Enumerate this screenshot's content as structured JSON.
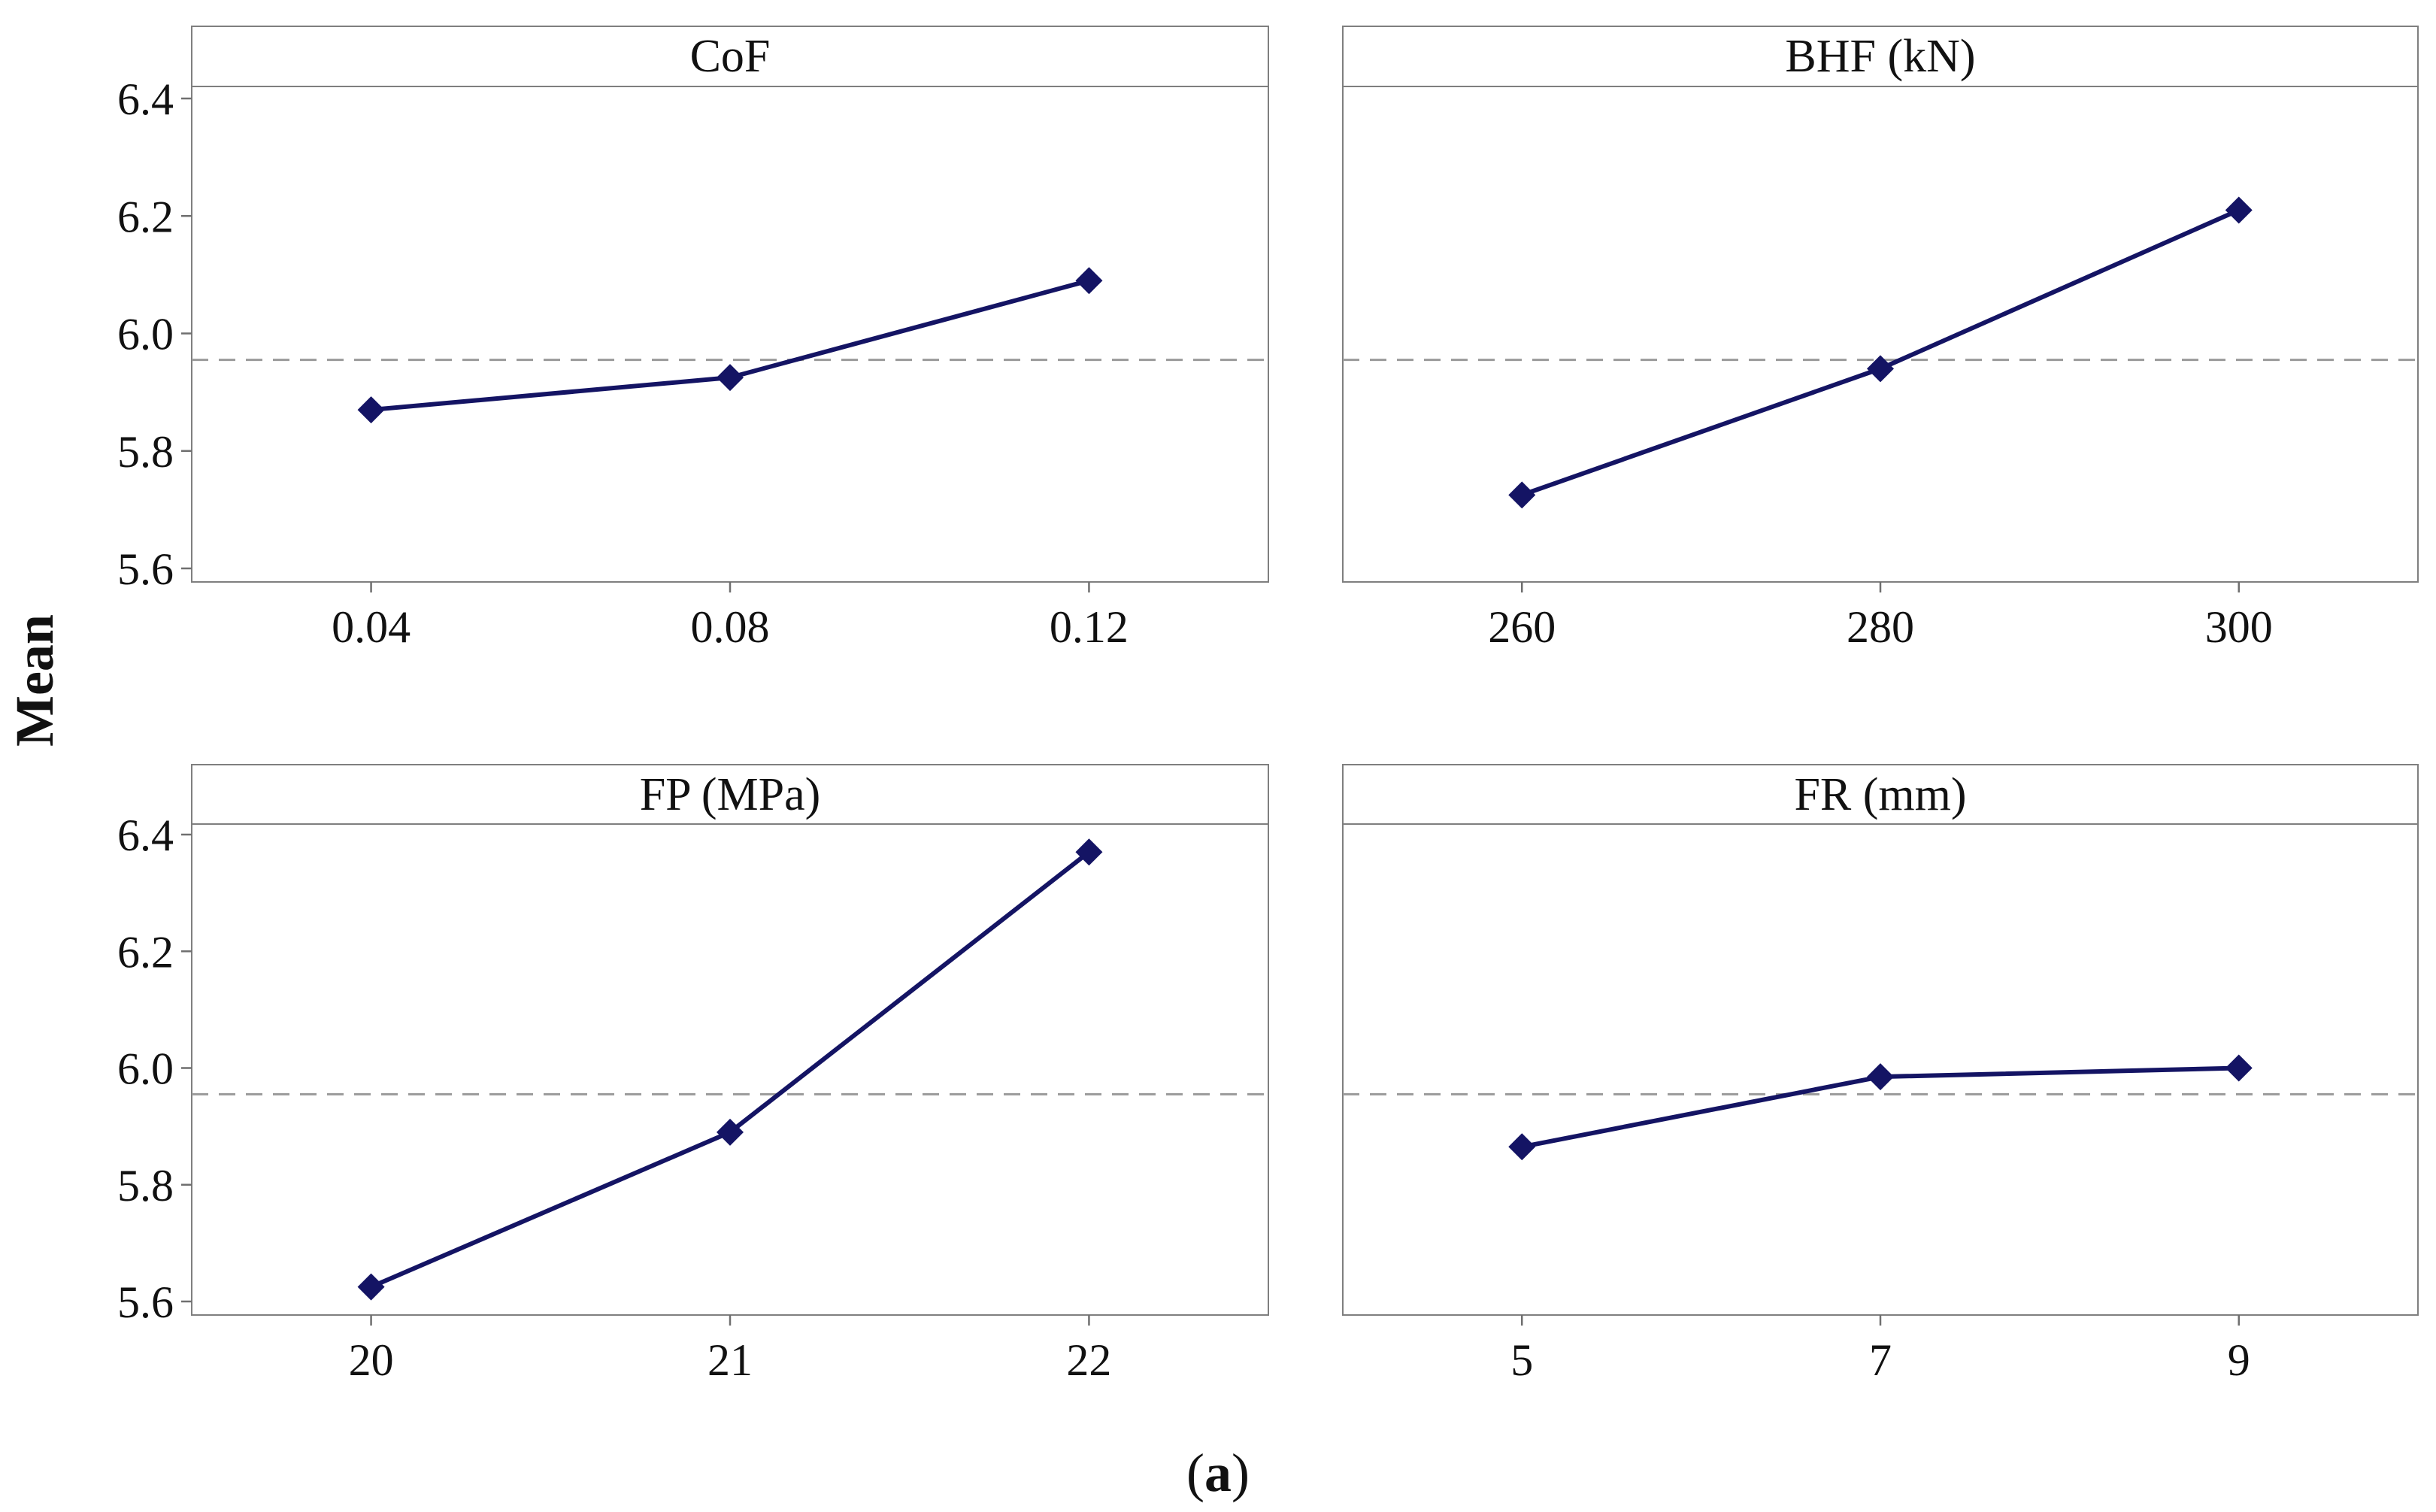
{
  "y_title": "Mean",
  "caption": {
    "open": "(",
    "letter": "a",
    "close": ")"
  },
  "colors": {
    "series": "#141464",
    "reference": "#9a9a9a",
    "frame": "#7f7f7f"
  },
  "chart_data": [
    {
      "type": "line",
      "title": "CoF",
      "ylabel": "Mean",
      "categories": [
        "0.04",
        "0.08",
        "0.12"
      ],
      "values": [
        5.87,
        5.925,
        6.09
      ],
      "reference_mean": 5.955,
      "ylim": [
        5.6,
        6.4
      ],
      "yticks": [
        "5.6",
        "5.8",
        "6.0",
        "6.2",
        "6.4"
      ]
    },
    {
      "type": "line",
      "title": "BHF (kN)",
      "ylabel": "Mean",
      "categories": [
        "260",
        "280",
        "300"
      ],
      "values": [
        5.725,
        5.94,
        6.21
      ],
      "reference_mean": 5.955,
      "ylim": [
        5.6,
        6.4
      ],
      "yticks": []
    },
    {
      "type": "line",
      "title": "FP (MPa)",
      "ylabel": "Mean",
      "categories": [
        "20",
        "21",
        "22"
      ],
      "values": [
        5.625,
        5.89,
        6.37
      ],
      "reference_mean": 5.955,
      "ylim": [
        5.6,
        6.4
      ],
      "yticks": [
        "5.6",
        "5.8",
        "6.0",
        "6.2",
        "6.4"
      ]
    },
    {
      "type": "line",
      "title": "FR (mm)",
      "ylabel": "Mean",
      "categories": [
        "5",
        "7",
        "9"
      ],
      "values": [
        5.865,
        5.985,
        6.0
      ],
      "reference_mean": 5.955,
      "ylim": [
        5.6,
        6.4
      ],
      "yticks": []
    }
  ]
}
